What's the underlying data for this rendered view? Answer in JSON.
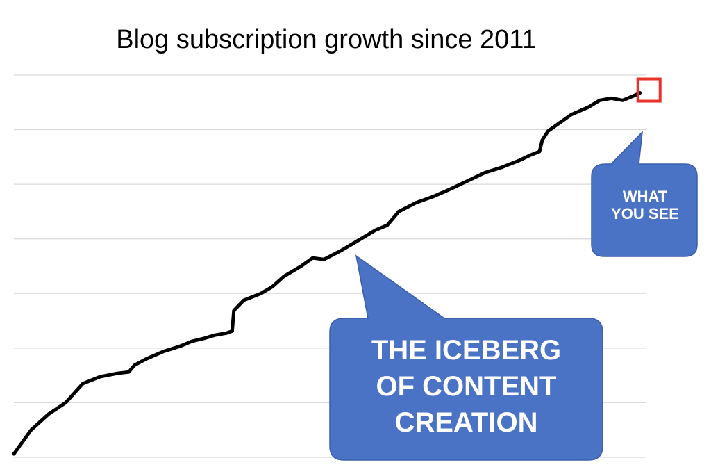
{
  "chart_data": {
    "type": "line",
    "title": "Blog subscription growth since 2011",
    "xlabel": "",
    "ylabel": "",
    "grid": true,
    "gridline_count": 8,
    "line_color": "#000000",
    "series": [
      {
        "points": [
          [
            0,
            0.5
          ],
          [
            3,
            4.0
          ],
          [
            6,
            6.3
          ],
          [
            9,
            8.0
          ],
          [
            12,
            10.8
          ],
          [
            15,
            11.8
          ],
          [
            18,
            12.3
          ],
          [
            20,
            12.5
          ],
          [
            21,
            13.5
          ],
          [
            23,
            14.4
          ],
          [
            26,
            15.5
          ],
          [
            29,
            16.3
          ],
          [
            31,
            17.0
          ],
          [
            33,
            17.4
          ],
          [
            35,
            17.9
          ],
          [
            37,
            18.2
          ],
          [
            38,
            18.5
          ],
          [
            38.3,
            21.5
          ],
          [
            40,
            23.0
          ],
          [
            43,
            24.0
          ],
          [
            45,
            25.0
          ],
          [
            47,
            26.5
          ],
          [
            50,
            28.0
          ],
          [
            52,
            29.2
          ],
          [
            54,
            29.0
          ],
          [
            57,
            30.3
          ],
          [
            60,
            31.8
          ],
          [
            63,
            33.3
          ],
          [
            65,
            34.0
          ],
          [
            67,
            36.0
          ],
          [
            70,
            37.3
          ],
          [
            73,
            38.2
          ],
          [
            76,
            39.3
          ],
          [
            79,
            40.5
          ],
          [
            82,
            41.7
          ],
          [
            85,
            42.5
          ],
          [
            88,
            43.5
          ],
          [
            90,
            44.3
          ],
          [
            91.5,
            44.8
          ],
          [
            92,
            46.5
          ],
          [
            93,
            47.8
          ],
          [
            95,
            49.0
          ],
          [
            97,
            50.2
          ],
          [
            100,
            51.3
          ],
          [
            102,
            52.3
          ],
          [
            104,
            52.6
          ],
          [
            106,
            52.3
          ],
          [
            108,
            53.0
          ],
          [
            109,
            53.4
          ]
        ]
      }
    ],
    "annotations": [
      {
        "id": "what_you_see",
        "text_lines": [
          "WHAT",
          "YOU SEE"
        ],
        "fill": "#4a73c5",
        "highlight_color": "#e8332a"
      },
      {
        "id": "iceberg",
        "text_lines": [
          "THE ICEBERG",
          "OF CONTENT",
          "CREATION"
        ],
        "fill": "#4a73c5"
      }
    ]
  },
  "colors": {
    "grid": "#d9d9d9",
    "callout_fill": "#4a73c5",
    "callout_stroke": "#3a5fa8",
    "highlight": "#e8332a"
  }
}
